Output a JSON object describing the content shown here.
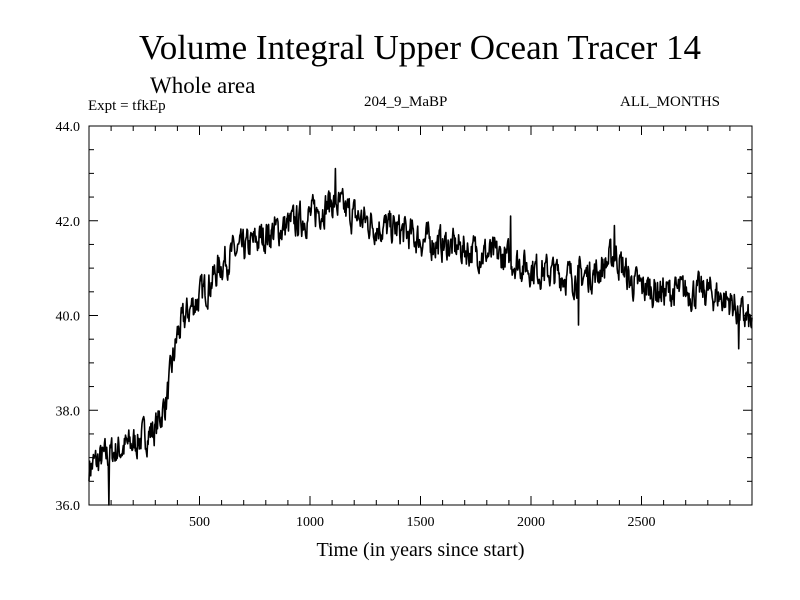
{
  "header": {
    "title": "Volume Integral Upper Ocean Tracer 14",
    "subtitle": "Whole area",
    "expt": "Expt = tfkEp",
    "run": "204_9_MaBP",
    "months": "ALL_MONTHS"
  },
  "chart_data": {
    "type": "line",
    "title": "Volume Integral Upper Ocean Tracer 14",
    "subtitle": "Whole area",
    "xlabel": "Time (in years since start)",
    "ylabel": "",
    "xlim": [
      0,
      3000
    ],
    "ylim": [
      36.0,
      44.0
    ],
    "xticks": [
      500,
      1000,
      1500,
      2000,
      2500
    ],
    "xtick_labels": [
      "500",
      "1000",
      "1500",
      "2000",
      "2500"
    ],
    "yticks": [
      36.0,
      38.0,
      40.0,
      42.0,
      44.0
    ],
    "ytick_labels": [
      "36.0",
      "38.0",
      "40.0",
      "42.0",
      "44.0"
    ],
    "grid": false,
    "line_color": "#000000",
    "noise_amplitude": 0.3,
    "series": [
      {
        "x": [
          0,
          100,
          200,
          300,
          350,
          400,
          450,
          500,
          550,
          600,
          650,
          700,
          800,
          900,
          1000,
          1100,
          1200,
          1300,
          1400,
          1500,
          1600,
          1700,
          1800,
          1900,
          2000,
          2100,
          2200,
          2300,
          2380,
          2450,
          2500,
          2600,
          2700,
          2800,
          2900,
          3000
        ],
        "values": [
          36.8,
          37.1,
          37.3,
          37.6,
          38.2,
          39.6,
          40.1,
          40.4,
          40.7,
          41.1,
          41.3,
          41.4,
          41.7,
          41.9,
          42.1,
          42.4,
          42.1,
          41.9,
          41.8,
          41.6,
          41.5,
          41.4,
          41.3,
          41.2,
          41.0,
          40.9,
          40.8,
          40.9,
          41.3,
          40.7,
          40.6,
          40.5,
          40.5,
          40.5,
          40.3,
          39.8
        ]
      }
    ],
    "spikes": [
      {
        "x": 1115,
        "value": 43.1
      },
      {
        "x": 90,
        "value": 35.9
      },
      {
        "x": 1908,
        "value": 42.1
      },
      {
        "x": 2378,
        "value": 41.9
      },
      {
        "x": 2215,
        "value": 39.8
      },
      {
        "x": 2940,
        "value": 39.3
      }
    ]
  }
}
